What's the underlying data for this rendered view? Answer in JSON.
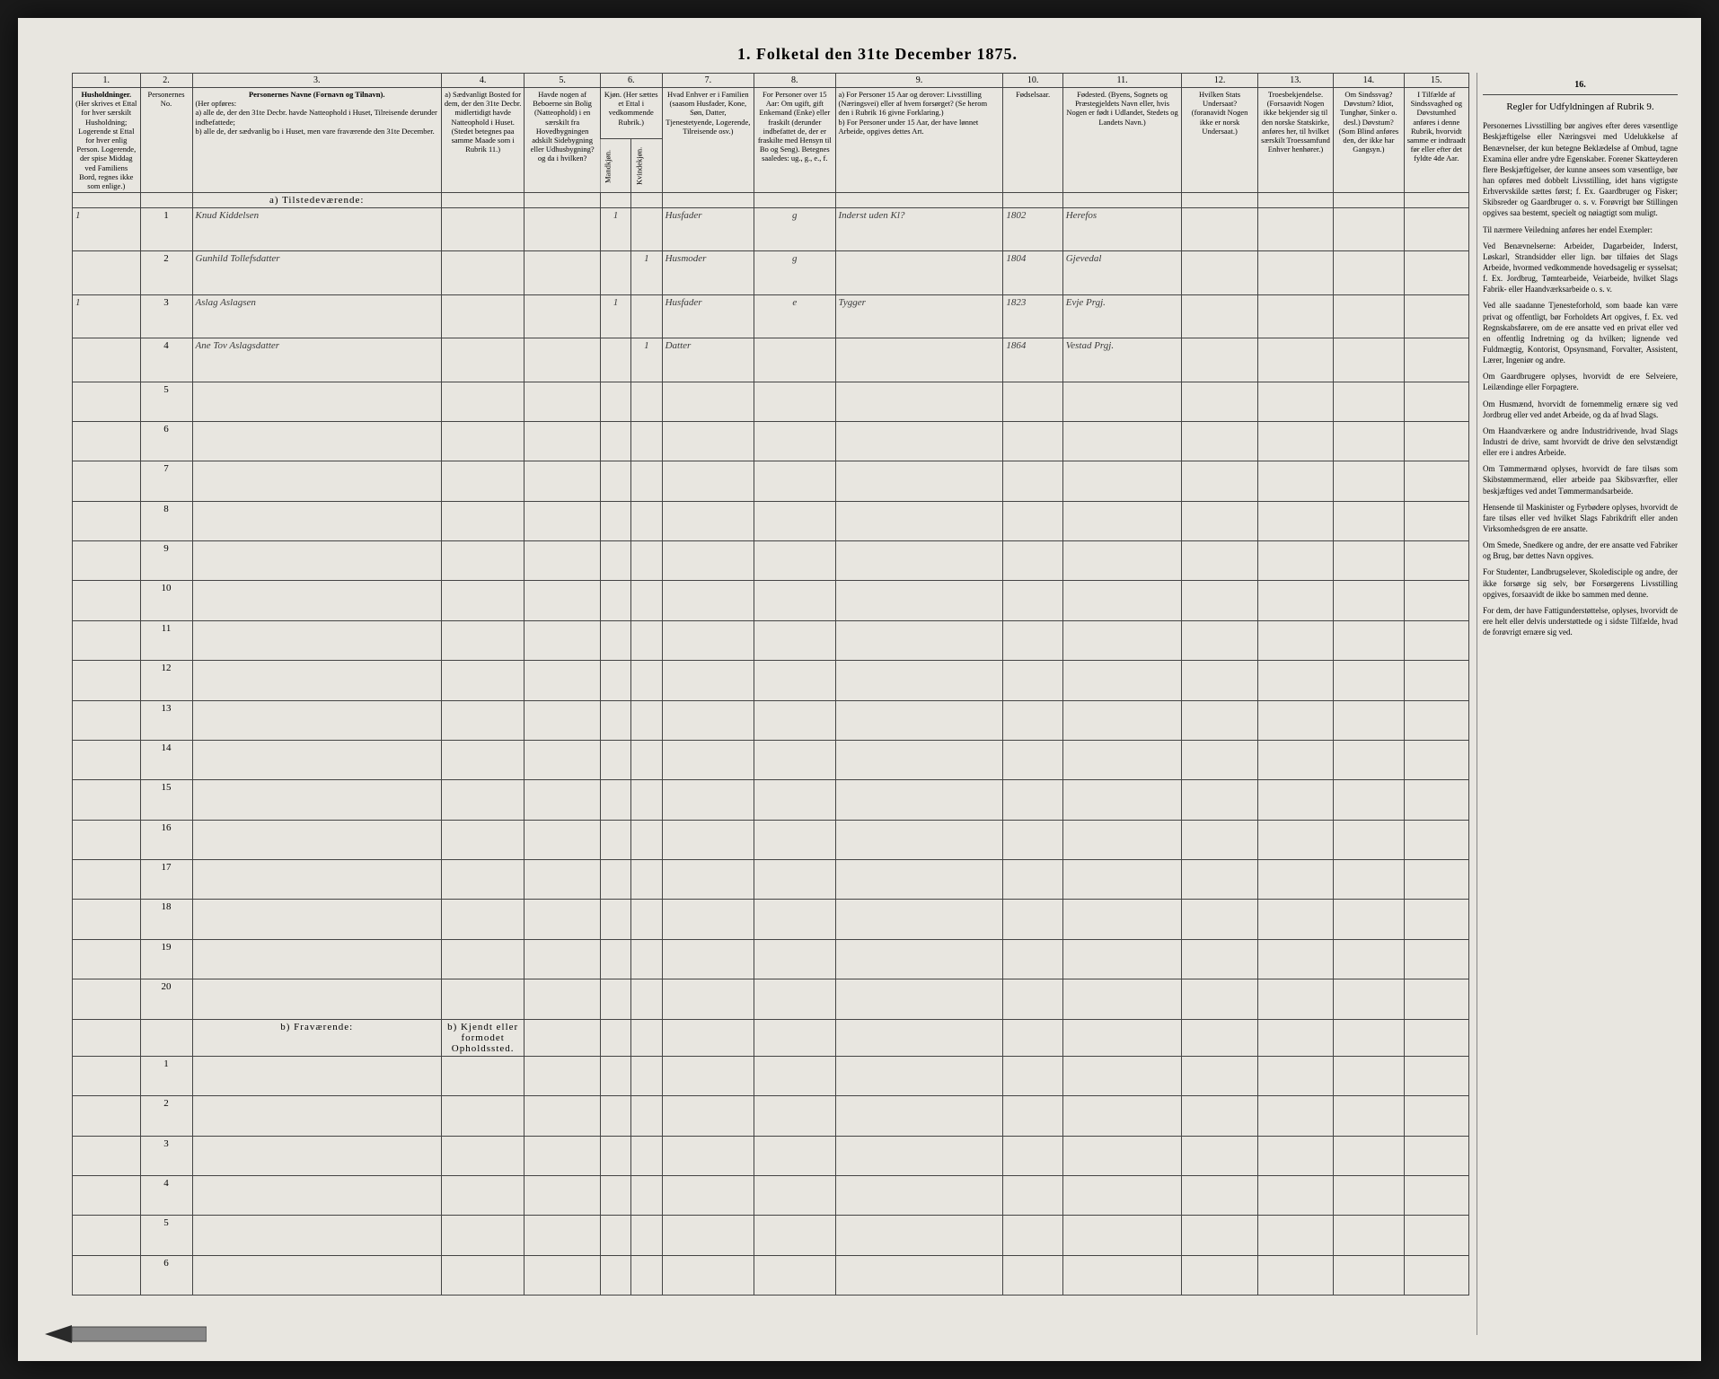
{
  "title": "1. Folketal den 31te December 1875.",
  "columns": {
    "nums": [
      "1.",
      "2.",
      "3.",
      "4.",
      "5.",
      "6.",
      "7.",
      "8.",
      "9.",
      "10.",
      "11.",
      "12.",
      "13.",
      "14.",
      "15.",
      "16."
    ],
    "h1": "Husholdninger.",
    "h1_sub": "(Her skrives et Ettal for hver særskilt Husholdning; Logerende st Ettal for hver enlig Person. Logerende, der spise Middag ved Familiens Bord, regnes ikke som enlige.)",
    "h2": "Personernes No.",
    "h3": "Personernes Navne (Fornavn og Tilnavn).",
    "h3_sub": "(Her opføres:\na) alle de, der den 31te Decbr. havde Natteophold i Huset, Tilreisende derunder indbefattede;\nb) alle de, der sædvanlig bo i Huset, men vare fraværende den 31te December.",
    "h4": "a) Sædvanligt Bosted for dem, der den 31te Decbr. midlertidigt havde Natteophold i Huset. (Stedet betegnes paa samme Maade som i Rubrik 11.)",
    "h5": "Havde nogen af Beboerne sin Bolig (Natteophold) i en særskilt fra Hovedbygningen adskilt Sidebygning eller Udhusbygning? og da i hvilken?",
    "h6": "Kjøn. (Her sættes et Ettal i vedkommende Rubrik.)",
    "h6a": "Mandkjøn.",
    "h6b": "Kvindekjøn.",
    "h7": "Hvad Enhver er i Familien (saasom Husfader, Kone, Søn, Datter, Tjenestetyende, Logerende, Tilreisende osv.)",
    "h8": "For Personer over 15 Aar: Om ugift, gift Enkemand (Enke) eller fraskilt (derunder indbefattet de, der er fraskilte med Hensyn til Bo og Seng). Betegnes saaledes: ug., g., e., f.",
    "h9": "a) For Personer 15 Aar og derover: Livsstilling (Næringsvei) eller af hvem forsørget? (Se herom den i Rubrik 16 givne Forklaring.)\nb) For Personer under 15 Aar, der have lønnet Arbeide, opgives dettes Art.",
    "h10": "Fødselsaar.",
    "h11": "Fødested. (Byens, Sognets og Præstegjeldets Navn eller, hvis Nogen er født i Udlandet, Stedets og Landets Navn.)",
    "h12": "Hvilken Stats Undersaat? (foranavidt Nogen ikke er norsk Undersaat.)",
    "h13": "Troesbekjendelse. (Forsaavidt Nogen ikke bekjender sig til den norske Statskirke, anføres her, til hvilket særskilt Troessamfund Enhver henhører.)",
    "h14": "Om Sindssvag? Døvstum? Idiot, Tunghør, Sinker o. desl.) Døvstum? (Som Blind anføres den, der ikke har Gangsyn.)",
    "h15": "I Tilfælde af Sindssvaghed og Døvstumhed anføres i denne Rubrik, hvorvidt samme er indtraadt før eller efter det fyldte 4de Aar.",
    "h16_title": "Regler for Udfyldningen af Rubrik 9."
  },
  "sections": {
    "a": "a) Tilstedeværende:",
    "b": "b) Fraværende:",
    "b4": "b) Kjendt eller formodet Opholdssted."
  },
  "rows": [
    {
      "hh": "1",
      "num": "1",
      "name": "Knud Kiddelsen",
      "col6a": "1",
      "col6b": "",
      "col7": "Husfader",
      "col8": "g",
      "col9": "Inderst uden Kl?",
      "col10": "1802",
      "col11": "Herefos"
    },
    {
      "hh": "",
      "num": "2",
      "name": "Gunhild Tollefsdatter",
      "col6a": "",
      "col6b": "1",
      "col7": "Husmoder",
      "col8": "g",
      "col9": "",
      "col10": "1804",
      "col11": "Gjevedal"
    },
    {
      "hh": "1",
      "num": "3",
      "name": "Aslag Aslagsen",
      "col6a": "1",
      "col6b": "",
      "col7": "Husfader",
      "col8": "e",
      "col9": "Tygger",
      "col10": "1823",
      "col11": "Evje Prgj."
    },
    {
      "hh": "",
      "num": "4",
      "name": "Ane Tov Aslagsdatter",
      "col6a": "",
      "col6b": "1",
      "col7": "Datter",
      "col8": "",
      "col9": "",
      "col10": "1864",
      "col11": "Vestad Prgj."
    }
  ],
  "empty_a": [
    "5",
    "6",
    "7",
    "8",
    "9",
    "10",
    "11",
    "12",
    "13",
    "14",
    "15",
    "16",
    "17",
    "18",
    "19",
    "20"
  ],
  "empty_b": [
    "1",
    "2",
    "3",
    "4",
    "5",
    "6"
  ],
  "sidebar": {
    "p1": "Personernes Livsstilling bør angives efter deres væsentlige Beskjæftigelse eller Næringsvei med Udelukkelse af Benævnelser, der kun betegne Beklædelse af Ombud, tagne Examina eller andre ydre Egenskaber. Forener Skatteyderen flere Beskjæftigelser, der kunne ansees som væsentlige, bør han opføres med dobbelt Livsstilling, idet hans vigtigste Erhvervskilde sættes først; f. Ex. Gaardbruger og Fisker; Skibsreder og Gaardbruger o. s. v. Forøvrigt bør Stillingen opgives saa bestemt, specielt og nøiagtigt som muligt.",
    "p2": "Til nærmere Veiledning anføres her endel Exempler:",
    "p3": "Ved Benævnelserne: Arbeider, Dagarbeider, Inderst, Løskarl, Strandsidder eller lign. bør tilføies det Slags Arbeide, hvormed vedkommende hovedsagelig er sysselsat; f. Ex. Jordbrug, Tømtearbeide, Veiarbeide, hvilket Slags Fabrik- eller Haandværksarbeide o. s. v.",
    "p4": "Ved alle saadanne Tjenesteforhold, som baade kan være privat og offentligt, bør Forholdets Art opgives, f. Ex. ved Regnskabsførere, om de ere ansatte ved en privat eller ved en offentlig Indretning og da hvilken; lignende ved Fuldmægtig, Kontorist, Opsynsmand, Forvalter, Assistent, Lærer, Ingeniør og andre.",
    "p5": "Om Gaardbrugere oplyses, hvorvidt de ere Selveiere, Leilændinge eller Forpagtere.",
    "p6": "Om Husmænd, hvorvidt de fornemmelig ernære sig ved Jordbrug eller ved andet Arbeide, og da af hvad Slags.",
    "p7": "Om Haandværkere og andre Industridrivende, hvad Slags Industri de drive, samt hvorvidt de drive den selvstændigt eller ere i andres Arbeide.",
    "p8": "Om Tømmermænd oplyses, hvorvidt de fare tilsøs som Skibstømmermænd, eller arbeide paa Skibsværfter, eller beskjæftiges ved andet Tømmermandsarbeide.",
    "p9": "Hensende til Maskinister og Fyrbødere oplyses, hvorvidt de fare tilsøs eller ved hvilket Slags Fabrikdrift eller anden Virksomhedsgren de ere ansatte.",
    "p10": "Om Smede, Snedkere og andre, der ere ansatte ved Fabriker og Brug, bør dettes Navn opgives.",
    "p11": "For Studenter, Landbrugselever, Skoledisciple og andre, der ikke forsørge sig selv, bør Forsørgerens Livsstilling opgives, forsaavidt de ikke bo sammen med denne.",
    "p12": "For dem, der have Fattigunderstøttelse, oplyses, hvorvidt de ere helt eller delvis understøttede og i sidste Tilfælde, hvad de forøvrigt ernære sig ved."
  }
}
